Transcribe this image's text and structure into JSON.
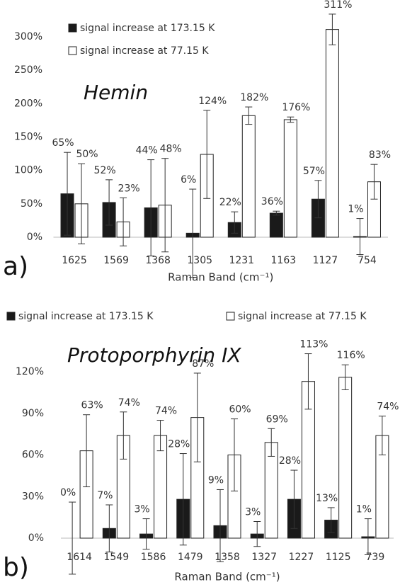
{
  "chart_data": [
    {
      "type": "bar",
      "title": "Hemin",
      "panel_label": "a)",
      "x_label": "Raman Band (cm⁻¹)",
      "categories": [
        "1625",
        "1569",
        "1368",
        "1305",
        "1231",
        "1163",
        "1127",
        "754"
      ],
      "series": [
        {
          "name": "signal increase at 173.15 K",
          "color": "#1a1a1a",
          "values": [
            65,
            52,
            44,
            6,
            22,
            36,
            57,
            1
          ],
          "errors": [
            62,
            34,
            72,
            66,
            16,
            3,
            28,
            27
          ],
          "value_labels": [
            "65%",
            "52%",
            "44%",
            "6%",
            "22%",
            "36%",
            "57%",
            "1%"
          ]
        },
        {
          "name": "signal increase at 77.15 K",
          "color": "#ffffff",
          "values": [
            50,
            23,
            48,
            124,
            182,
            176,
            311,
            83
          ],
          "errors": [
            60,
            36,
            70,
            66,
            13,
            4,
            23,
            26
          ],
          "value_labels": [
            "50%",
            "23%",
            "48%",
            "124%",
            "182%",
            "176%",
            "311%",
            "83%"
          ]
        }
      ],
      "ylim": [
        0,
        300
      ],
      "yticks": [
        {
          "value": 0,
          "label": "0%"
        },
        {
          "value": 50,
          "label": "50%"
        },
        {
          "value": 100,
          "label": "100%"
        },
        {
          "value": 150,
          "label": "150%"
        },
        {
          "value": 200,
          "label": "200%"
        },
        {
          "value": 250,
          "label": "250%"
        },
        {
          "value": 300,
          "label": "300%"
        }
      ],
      "legend": "top-left-vertical"
    },
    {
      "type": "bar",
      "title": "Protoporphyrin IX",
      "panel_label": "b)",
      "x_label": "Raman Band (cm⁻¹)",
      "categories": [
        "1614",
        "1549",
        "1586",
        "1479",
        "1358",
        "1327",
        "1227",
        "1125",
        "739"
      ],
      "series": [
        {
          "name": "signal increase at 173.15 K",
          "color": "#1a1a1a",
          "values": [
            0,
            7,
            3,
            28,
            9,
            3,
            28,
            13,
            1
          ],
          "errors": [
            26,
            17,
            11,
            33,
            26,
            9,
            21,
            9,
            13
          ],
          "value_labels": [
            "0%",
            "7%",
            "3%",
            "28%",
            "9%",
            "3%",
            "28%",
            "13%",
            "1%"
          ]
        },
        {
          "name": "signal increase at 77.15 K",
          "color": "#ffffff",
          "values": [
            63,
            74,
            74,
            87,
            60,
            69,
            113,
            116,
            74
          ],
          "errors": [
            26,
            17,
            11,
            32,
            26,
            10,
            20,
            9,
            14
          ],
          "value_labels": [
            "63%",
            "74%",
            "74%",
            "87%",
            "60%",
            "69%",
            "113%",
            "116%",
            "74%"
          ]
        }
      ],
      "ylim": [
        0,
        120
      ],
      "yticks": [
        {
          "value": 0,
          "label": "0%"
        },
        {
          "value": 30,
          "label": "30%"
        },
        {
          "value": 60,
          "label": "60%"
        },
        {
          "value": 90,
          "label": "90%"
        },
        {
          "value": 120,
          "label": "120%"
        }
      ],
      "legend": "top-horizontal"
    }
  ]
}
